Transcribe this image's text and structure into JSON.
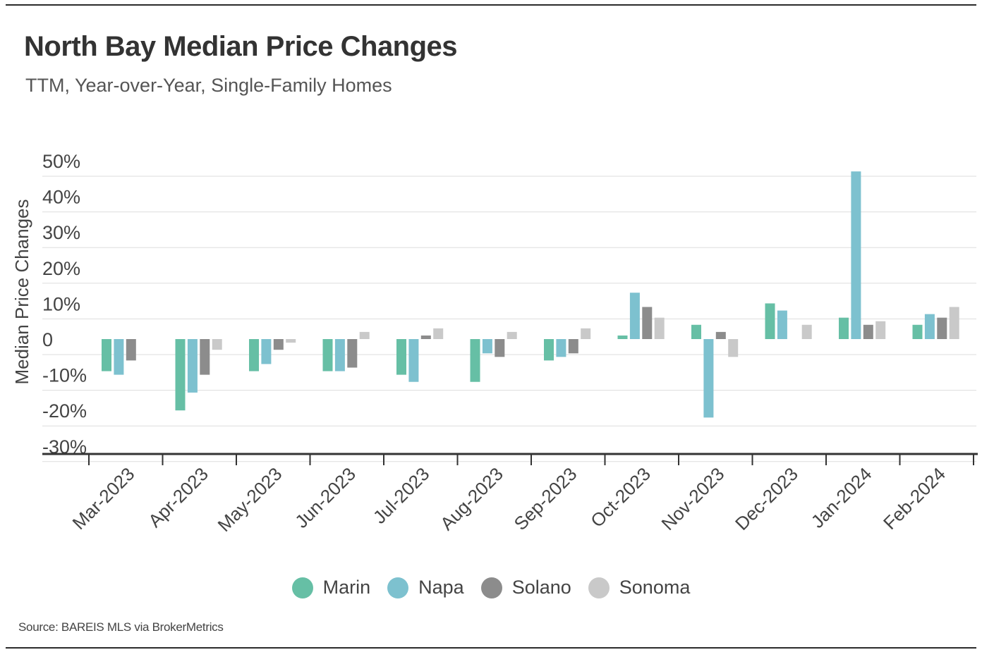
{
  "header": {
    "title": "North Bay Median Price Changes",
    "subtitle": "TTM, Year-over-Year, Single-Family Homes"
  },
  "footer": {
    "source": "Source:  BAREIS MLS via BrokerMetrics"
  },
  "legend": [
    {
      "name": "Marin",
      "color": "#66BFA5"
    },
    {
      "name": "Napa",
      "color": "#7DC1CF"
    },
    {
      "name": "Solano",
      "color": "#8C8C8C"
    },
    {
      "name": "Sonoma",
      "color": "#C9C9C9"
    }
  ],
  "chart_data": {
    "type": "bar",
    "title": "North Bay Median Price Changes",
    "subtitle": "TTM, Year-over-Year, Single-Family Homes",
    "xlabel": "",
    "ylabel": "Median Price Changes",
    "ylim": [
      -30,
      50
    ],
    "yticks": [
      50,
      40,
      30,
      20,
      10,
      0,
      -10,
      -20,
      -30
    ],
    "ytick_labels": [
      "50%",
      "40%",
      "30%",
      "20%",
      "10%",
      "0",
      "-10%",
      "-20%",
      "-30%"
    ],
    "grid": true,
    "legend_position": "bottom",
    "categories": [
      "Mar-2023",
      "Apr-2023",
      "May-2023",
      "Jun-2023",
      "Jul-2023",
      "Aug-2023",
      "Sep-2023",
      "Oct-2023",
      "Nov-2023",
      "Dec-2023",
      "Jan-2024",
      "Feb-2024"
    ],
    "series": [
      {
        "name": "Marin",
        "color": "#66BFA5",
        "values": [
          -9,
          -20,
          -9,
          -9,
          -10,
          -12,
          -6,
          1,
          4,
          10,
          6,
          4
        ]
      },
      {
        "name": "Napa",
        "color": "#7DC1CF",
        "values": [
          -10,
          -15,
          -7,
          -9,
          -12,
          -4,
          -5,
          13,
          -22,
          8,
          47,
          7
        ]
      },
      {
        "name": "Solano",
        "color": "#8C8C8C",
        "values": [
          -6,
          -10,
          -3,
          -8,
          1,
          -5,
          -4,
          9,
          2,
          0,
          4,
          6
        ]
      },
      {
        "name": "Sonoma",
        "color": "#C9C9C9",
        "values": [
          0,
          -3,
          -1,
          2,
          3,
          2,
          3,
          6,
          -5,
          4,
          5,
          9
        ]
      }
    ]
  }
}
